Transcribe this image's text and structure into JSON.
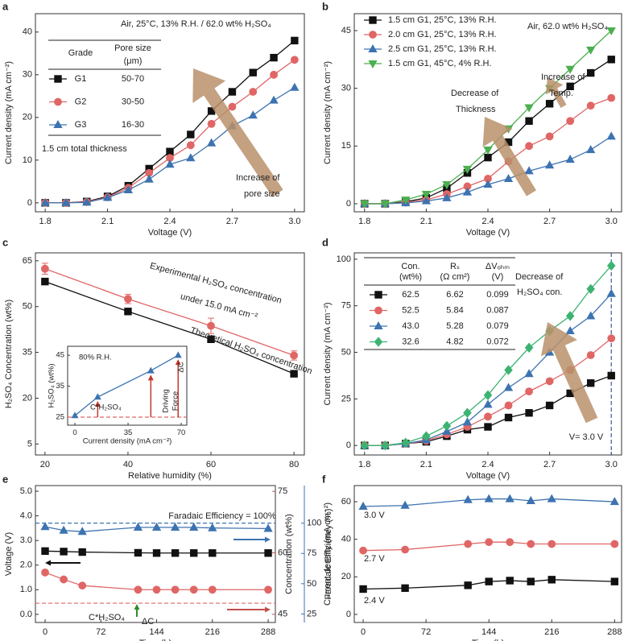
{
  "chart_data": [
    {
      "panel": "a",
      "type": "line",
      "xlabel": "Voltage (V)",
      "ylabel": "Current density (mA cm⁻²)",
      "x": [
        1.8,
        1.9,
        2.0,
        2.1,
        2.2,
        2.3,
        2.4,
        2.5,
        2.6,
        2.7,
        2.8,
        2.9,
        3.0
      ],
      "xlim": [
        1.753,
        3.047
      ],
      "xticks": [
        1.8,
        2.1,
        2.4,
        2.7,
        {
          "value": 3,
          "label": "3.0"
        }
      ],
      "ylim": [
        -2.1,
        44.3
      ],
      "yticks": [
        0,
        10,
        20,
        30,
        40
      ],
      "series": [
        {
          "name": "G1",
          "color": "#111111",
          "marker": "square",
          "values": [
            0,
            0,
            0.3,
            1.5,
            4,
            8,
            12,
            16,
            21.5,
            26,
            30.5,
            34,
            38
          ]
        },
        {
          "name": "G2",
          "color": "#e06666",
          "marker": "circle",
          "values": [
            0,
            0,
            0.2,
            1.3,
            3.5,
            7,
            10.5,
            13.5,
            18.5,
            22.5,
            26,
            30,
            33.5
          ]
        },
        {
          "name": "G3",
          "color": "#3d73b0",
          "marker": "triangle",
          "values": [
            0,
            0,
            0.1,
            1.2,
            3,
            5.5,
            9,
            10.5,
            14,
            18,
            20.5,
            24,
            27
          ]
        }
      ],
      "legend": "table",
      "table": {
        "columns": [
          "Grade",
          "Pore size",
          "(μm)"
        ],
        "rows": [
          "50-70",
          "30-50",
          "16-30"
        ]
      },
      "annotations": [
        "Air, 25°C, 13% R.H. / 62.0 wt% H₂SO₄",
        "1.5 cm total thickness",
        "Increase of",
        "pore size"
      ]
    },
    {
      "panel": "b",
      "type": "line",
      "xlabel": "Voltage (V)",
      "ylabel": "Current density (mA cm⁻²)",
      "x": [
        1.8,
        1.9,
        2.0,
        2.1,
        2.2,
        2.3,
        2.4,
        2.5,
        2.6,
        2.7,
        2.8,
        2.9,
        3.0
      ],
      "xlim": [
        1.75,
        3.05
      ],
      "xticks": [
        1.8,
        2.1,
        2.4,
        2.7,
        {
          "value": 3,
          "label": "3.0"
        }
      ],
      "ylim": [
        -2.1,
        49.4
      ],
      "yticks": [
        0,
        15,
        30,
        45
      ],
      "series": [
        {
          "name": "1.5 cm G1, 25°C, 13% R.H.",
          "color": "#111111",
          "marker": "square",
          "values": [
            0,
            0,
            0.5,
            1.5,
            4,
            8,
            12,
            16,
            21.5,
            26,
            30.5,
            34,
            37.5
          ]
        },
        {
          "name": "2.0 cm G1, 25°C, 13% R.H.",
          "color": "#e06666",
          "marker": "circle",
          "values": [
            0,
            0,
            0.3,
            1,
            2.5,
            4.5,
            6.5,
            11,
            15,
            17.5,
            21.5,
            25.5,
            27.5
          ]
        },
        {
          "name": "2.5 cm G1, 25°C, 13% R.H.",
          "color": "#3d73b0",
          "marker": "triangle",
          "values": [
            0,
            0,
            0.2,
            0.7,
            1.5,
            3,
            5,
            6.5,
            8.5,
            10,
            11.5,
            14,
            17.5
          ]
        },
        {
          "name": "1.5 cm G1, 45°C, 4% R.H.",
          "color": "#4caf50",
          "marker": "triangle-down",
          "values": [
            0,
            0,
            1,
            2.5,
            5,
            9,
            14,
            19.5,
            25,
            30,
            35,
            40,
            45
          ]
        }
      ],
      "legend": "upper left",
      "annotations": [
        "Air, 62.0 wt% H₂SO₄",
        "Increase of",
        "Temp.",
        "Decrease of",
        "Thickness"
      ]
    },
    {
      "panel": "c",
      "type": "line",
      "xlabel": "Relative humidity (%)",
      "ylabel": "H₂SO₄ Concentration (wt%)",
      "x": [
        20,
        40,
        60,
        80
      ],
      "xlim": [
        17.7,
        82.5
      ],
      "xticks": [
        20,
        40,
        60,
        80
      ],
      "ylim": [
        1.4,
        67.6
      ],
      "yticks": [
        5,
        20,
        35,
        50,
        65
      ],
      "series": [
        {
          "color": "#111111",
          "marker": "square",
          "values": [
            58.2,
            48.4,
            39.3,
            28
          ]
        },
        {
          "color": "#e06666",
          "marker": "circle",
          "values": [
            62.4,
            52.5,
            43.7,
            34
          ],
          "errors": [
            1.8,
            1.5,
            2.5,
            1.5
          ]
        }
      ],
      "annotations": [
        "Experimental H₂SO₄ concentration",
        "under 15.0 mA cm⁻²",
        "Theoretical H₂SO₄ concentration"
      ]
    },
    {
      "type": "line",
      "xlabel": "Current density (mA cm⁻²)",
      "ylabel": "H₂SO₄ (wt%)",
      "x": [
        0,
        15,
        50,
        68
      ],
      "xlim": [
        -4.8,
        73.7
      ],
      "xticks": [
        0,
        35,
        70
      ],
      "ylim": [
        22.4,
        47.9
      ],
      "yticks": [
        25,
        35,
        45
      ],
      "series": [
        {
          "color": "#3d73b0",
          "marker": "triangle",
          "values": [
            25.5,
            31.5,
            40,
            45
          ]
        }
      ],
      "hlines": [
        {
          "value": 25,
          "color": "#e06666"
        }
      ],
      "annotations": [
        "80% R.H.",
        "C*H₂SO₄",
        "Driving",
        "Force",
        "ΔC"
      ]
    },
    {
      "panel": "d",
      "type": "line",
      "xlabel": "Voltage (V)",
      "ylabel": "Current density (mA cm⁻²)",
      "x": [
        1.8,
        1.9,
        2.0,
        2.1,
        2.2,
        2.3,
        2.4,
        2.5,
        2.6,
        2.7,
        2.8,
        2.9,
        3.0
      ],
      "xlim": [
        1.75,
        3.05
      ],
      "xticks": [
        1.8,
        2.1,
        2.4,
        2.7,
        {
          "value": 3,
          "label": "3.0"
        }
      ],
      "ylim": [
        -5.1,
        103.4
      ],
      "yticks": [
        0,
        25,
        50,
        75,
        100
      ],
      "series": [
        {
          "name": "62.5",
          "color": "#111111",
          "marker": "square",
          "values": [
            0,
            0,
            1,
            2,
            5,
            8.5,
            10,
            15,
            17.5,
            21.5,
            28,
            33.5,
            37.5
          ]
        },
        {
          "name": "52.5",
          "color": "#e06666",
          "marker": "circle",
          "values": [
            0,
            0,
            1,
            2.5,
            6,
            10,
            15.5,
            21.5,
            29,
            34.5,
            40.5,
            48.5,
            57.5
          ]
        },
        {
          "name": "43.0",
          "color": "#3d73b0",
          "marker": "triangle",
          "values": [
            0,
            0,
            1,
            3,
            7.5,
            12.5,
            22,
            31,
            38.5,
            50,
            61.5,
            69.5,
            81.5
          ]
        },
        {
          "name": "32.6",
          "color": "#3cb371",
          "marker": "diamond",
          "values": [
            0,
            0,
            1.5,
            5,
            10.5,
            17.5,
            27,
            40.5,
            52.5,
            61.5,
            69.5,
            84,
            96.5
          ]
        }
      ],
      "legend": "table",
      "table": {
        "columns": [
          "Con.",
          "(wt%)",
          "Rₛ",
          "(Ω cm²)",
          "ΔVₒₕₘ",
          "(V)"
        ],
        "rows": [
          [
            6.62,
            0.099
          ],
          [
            5.84,
            0.087
          ],
          [
            5.28,
            0.079
          ],
          [
            4.82,
            0.072
          ]
        ]
      },
      "vlines": [
        {
          "value": 3,
          "color": "#3d5a99"
        }
      ],
      "annotations": [
        "Decrease of",
        "H₂SO₄ con.",
        "V= 3.0 V"
      ]
    },
    {
      "panel": "e",
      "type": "line",
      "xlabel": "Time (h)",
      "ylabel": "Voltage (V)",
      "y2label": "Concentration (wt%)",
      "y3label": "Faradaic Efficiency (%)",
      "xlim": [
        -12.5,
        297.3
      ],
      "xticks": [
        0,
        72,
        144,
        216,
        288
      ],
      "ylim": [
        -0.33,
        5.23
      ],
      "yticks": [
        {
          "value": 0,
          "label": "0.0"
        },
        {
          "value": 1,
          "label": "1.0"
        },
        {
          "value": 2,
          "label": "2.0"
        },
        {
          "value": 3,
          "label": "3.0"
        },
        {
          "value": 4,
          "label": "4.0"
        },
        {
          "value": 5,
          "label": "5.0"
        }
      ],
      "y2lim": [
        43,
        76.4
      ],
      "y2ticks": [
        45,
        60,
        75
      ],
      "y3lim": [
        18,
        131
      ],
      "y3ticks": [
        25,
        50,
        75,
        100
      ],
      "series": [
        {
          "color": "#111111",
          "marker": "square",
          "x": [
            0,
            24,
            48,
            120,
            144,
            168,
            192,
            216,
            288
          ],
          "values": [
            2.57,
            2.55,
            2.53,
            2.5,
            2.49,
            2.49,
            2.49,
            2.49,
            2.49
          ]
        },
        {
          "color": "#e06666",
          "marker": "circle",
          "axis": "y2",
          "x": [
            0,
            24,
            48,
            120,
            144,
            168,
            192,
            216,
            288
          ],
          "values": [
            55.2,
            53.5,
            52,
            51,
            51,
            51,
            51,
            51,
            51
          ]
        },
        {
          "color": "#3d73b0",
          "marker": "triangle",
          "axis": "y3",
          "x": [
            0,
            24,
            48,
            120,
            144,
            168,
            192,
            216,
            288
          ],
          "values": [
            97,
            94,
            93,
            96.5,
            96.5,
            96.5,
            96.5,
            96,
            95.5
          ]
        }
      ],
      "hlines": [
        {
          "value": 100,
          "axis": "y3",
          "color": "#3d73b0"
        },
        {
          "value": 47.7,
          "axis": "y2",
          "color": "#e06666"
        }
      ],
      "annotations": [
        "Faradaic Efficiency = 100%",
        "C*H₂SO₄",
        "ΔC"
      ]
    },
    {
      "panel": "f",
      "type": "line",
      "xlabel": "Time (h)",
      "ylabel": "Current density (mA cm⁻²)",
      "xlim": [
        -10.2,
        296
      ],
      "xticks": [
        0,
        72,
        144,
        216,
        288
      ],
      "ylim": [
        -4.3,
        68.6
      ],
      "yticks": [
        0,
        20,
        40,
        60
      ],
      "series": [
        {
          "name": "3.0 V",
          "color": "#3d73b0",
          "marker": "triangle",
          "x": [
            0,
            48,
            120,
            144,
            168,
            192,
            216,
            288
          ],
          "values": [
            57.5,
            58,
            61,
            61.5,
            61.5,
            60.5,
            61.5,
            60
          ]
        },
        {
          "name": "2.7 V",
          "color": "#e06666",
          "marker": "circle",
          "x": [
            0,
            48,
            120,
            144,
            168,
            192,
            216,
            288
          ],
          "values": [
            34,
            34.5,
            37.5,
            38.5,
            38.5,
            37.5,
            37.5,
            37.5
          ]
        },
        {
          "name": "2.4 V",
          "color": "#111111",
          "marker": "square",
          "x": [
            0,
            48,
            120,
            144,
            168,
            192,
            216,
            288
          ],
          "values": [
            13.5,
            14,
            15.5,
            17.5,
            18,
            17.5,
            18.5,
            17.5
          ]
        }
      ],
      "legend": "labels"
    }
  ]
}
